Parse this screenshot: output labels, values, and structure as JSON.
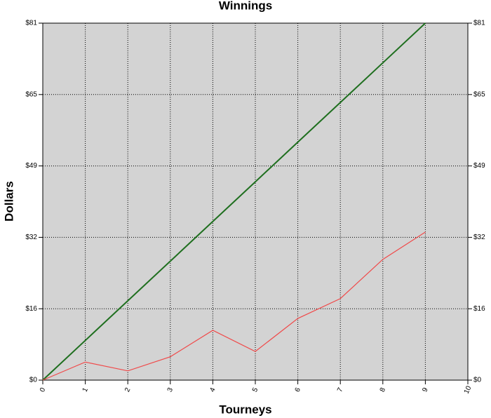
{
  "chart_data": {
    "type": "line",
    "title": "Winnings",
    "xlabel": "Tourneys",
    "ylabel": "Dollars",
    "x": [
      0,
      1,
      2,
      3,
      4,
      5,
      6,
      7,
      8,
      9
    ],
    "series": [
      {
        "color": "#1f6f1f",
        "values": [
          0,
          9,
          18,
          27,
          36,
          45,
          54,
          63,
          72,
          81
        ]
      },
      {
        "color": "#f04a4a",
        "values": [
          0,
          4.1,
          2.1,
          5.3,
          11.3,
          6.5,
          14.0,
          18.5,
          27.4,
          33.6
        ]
      }
    ],
    "xlim": [
      0,
      10
    ],
    "xticks": [
      0,
      1,
      2,
      3,
      4,
      5,
      6,
      7,
      8,
      9,
      10
    ],
    "ylim": [
      0,
      81
    ],
    "yticks": [
      {
        "value": 0,
        "label": "$0"
      },
      {
        "value": 16.2,
        "label": "$16"
      },
      {
        "value": 32.4,
        "label": "$32"
      },
      {
        "value": 48.6,
        "label": "$49"
      },
      {
        "value": 64.8,
        "label": "$65"
      },
      {
        "value": 81,
        "label": "$81"
      }
    ],
    "grid": true
  }
}
